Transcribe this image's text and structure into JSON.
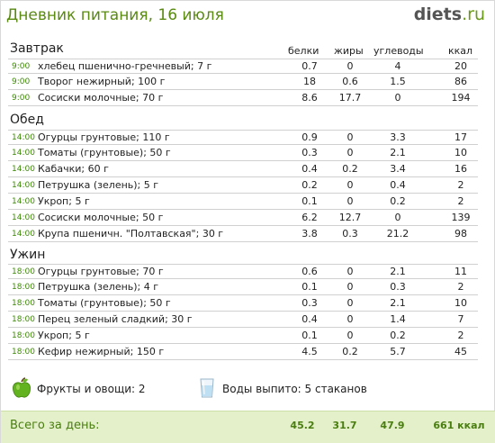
{
  "header": {
    "title": "Дневник питания, 16 июля",
    "logo_name": "diets",
    "logo_tld": ".ru"
  },
  "columns": {
    "protein": "белки",
    "fat": "жиры",
    "carbs": "углеводы",
    "kcal": "ккал"
  },
  "meals": [
    {
      "name": "Завтрак",
      "rows": [
        {
          "time": "9:00",
          "food": "хлебец пшенично-гречневый; 7 г",
          "protein": "0.7",
          "fat": "0",
          "carbs": "4",
          "kcal": "20"
        },
        {
          "time": "9:00",
          "food": "Творог нежирный; 100 г",
          "protein": "18",
          "fat": "0.6",
          "carbs": "1.5",
          "kcal": "86"
        },
        {
          "time": "9:00",
          "food": "Сосиски молочные; 70 г",
          "protein": "8.6",
          "fat": "17.7",
          "carbs": "0",
          "kcal": "194"
        }
      ]
    },
    {
      "name": "Обед",
      "rows": [
        {
          "time": "14:00",
          "food": "Огурцы грунтовые; 110 г",
          "protein": "0.9",
          "fat": "0",
          "carbs": "3.3",
          "kcal": "17"
        },
        {
          "time": "14:00",
          "food": "Томаты (грунтовые); 50 г",
          "protein": "0.3",
          "fat": "0",
          "carbs": "2.1",
          "kcal": "10"
        },
        {
          "time": "14:00",
          "food": "Кабачки; 60 г",
          "protein": "0.4",
          "fat": "0.2",
          "carbs": "3.4",
          "kcal": "16"
        },
        {
          "time": "14:00",
          "food": "Петрушка (зелень); 5 г",
          "protein": "0.2",
          "fat": "0",
          "carbs": "0.4",
          "kcal": "2"
        },
        {
          "time": "14:00",
          "food": "Укроп; 5 г",
          "protein": "0.1",
          "fat": "0",
          "carbs": "0.2",
          "kcal": "2"
        },
        {
          "time": "14:00",
          "food": "Сосиски молочные; 50 г",
          "protein": "6.2",
          "fat": "12.7",
          "carbs": "0",
          "kcal": "139"
        },
        {
          "time": "14:00",
          "food": "Крупа пшеничн. \"Полтавская\"; 30 г",
          "protein": "3.8",
          "fat": "0.3",
          "carbs": "21.2",
          "kcal": "98"
        }
      ]
    },
    {
      "name": "Ужин",
      "rows": [
        {
          "time": "18:00",
          "food": "Огурцы грунтовые; 70 г",
          "protein": "0.6",
          "fat": "0",
          "carbs": "2.1",
          "kcal": "11"
        },
        {
          "time": "18:00",
          "food": "Петрушка (зелень); 4 г",
          "protein": "0.1",
          "fat": "0",
          "carbs": "0.3",
          "kcal": "2"
        },
        {
          "time": "18:00",
          "food": "Томаты (грунтовые); 50 г",
          "protein": "0.3",
          "fat": "0",
          "carbs": "2.1",
          "kcal": "10"
        },
        {
          "time": "18:00",
          "food": "Перец зеленый сладкий; 30 г",
          "protein": "0.4",
          "fat": "0",
          "carbs": "1.4",
          "kcal": "7"
        },
        {
          "time": "18:00",
          "food": "Укроп; 5 г",
          "protein": "0.1",
          "fat": "0",
          "carbs": "0.2",
          "kcal": "2"
        },
        {
          "time": "18:00",
          "food": "Кефир нежирный; 150 г",
          "protein": "4.5",
          "fat": "0.2",
          "carbs": "5.7",
          "kcal": "45"
        }
      ]
    }
  ],
  "extras": {
    "fruits_label": "Фрукты и овощи: 2",
    "fruits_icon": "apple-icon",
    "water_label": "Воды выпито: 5 стаканов",
    "water_icon": "glass-icon"
  },
  "totals": {
    "label": "Всего за день:",
    "protein": "45.2",
    "fat": "31.7",
    "carbs": "47.9",
    "kcal": "661 ккал"
  },
  "colors": {
    "accent_green": "#5a8a12",
    "time_green": "#3e8a08",
    "footer_bg": "#e3f0c9"
  }
}
